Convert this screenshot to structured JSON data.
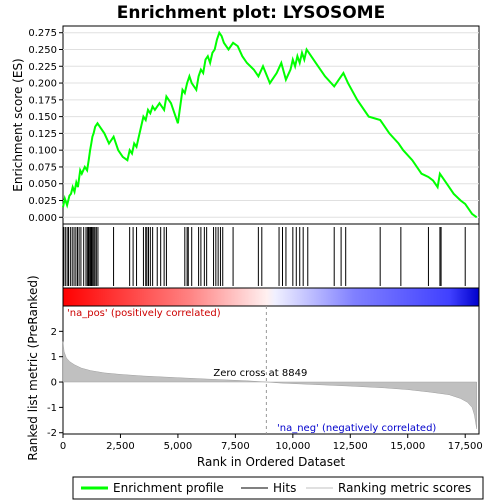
{
  "chart_data": {
    "type": "line",
    "title": "Enrichment plot: LYSOSOME",
    "top_panel": {
      "ylabel": "Enrichment score (ES)",
      "ylim": [
        -0.01,
        0.285
      ],
      "yticks": [
        0.0,
        0.025,
        0.05,
        0.075,
        0.1,
        0.125,
        0.15,
        0.175,
        0.2,
        0.225,
        0.25,
        0.275
      ],
      "ytick_labels": [
        "0.000",
        "0.025",
        "0.050",
        "0.075",
        "0.100",
        "0.125",
        "0.150",
        "0.175",
        "0.200",
        "0.225",
        "0.250",
        "0.275"
      ],
      "series": [
        {
          "name": "Enrichment profile",
          "color": "#00ff00",
          "x": [
            0,
            80,
            180,
            280,
            350,
            420,
            500,
            580,
            650,
            750,
            820,
            950,
            1050,
            1120,
            1180,
            1230,
            1280,
            1330,
            1400,
            1500,
            1800,
            2000,
            2200,
            2400,
            2600,
            2800,
            2900,
            3000,
            3100,
            3200,
            3300,
            3400,
            3500,
            3600,
            3700,
            3800,
            3900,
            4000,
            4200,
            4400,
            4500,
            4700,
            5000,
            5200,
            5300,
            5400,
            5500,
            5600,
            5800,
            5900,
            6000,
            6100,
            6200,
            6300,
            6400,
            6500,
            6600,
            6700,
            6800,
            6900,
            7000,
            7200,
            7400,
            7600,
            7800,
            8000,
            8300,
            8500,
            8700,
            9000,
            9300,
            9500,
            9700,
            9900,
            10000,
            10100,
            10200,
            10300,
            10400,
            10500,
            10600,
            10700,
            11000,
            11400,
            11800,
            12000,
            12200,
            12400,
            12800,
            13300,
            13800,
            14200,
            14600,
            14800,
            15200,
            15600,
            15900,
            16100,
            16300,
            16400,
            16700,
            17000,
            17300,
            17500,
            17800,
            18000
          ],
          "y": [
            0.015,
            0.028,
            0.018,
            0.032,
            0.035,
            0.045,
            0.038,
            0.052,
            0.045,
            0.07,
            0.065,
            0.075,
            0.07,
            0.085,
            0.1,
            0.11,
            0.12,
            0.125,
            0.135,
            0.14,
            0.125,
            0.11,
            0.12,
            0.1,
            0.09,
            0.085,
            0.1,
            0.095,
            0.11,
            0.105,
            0.12,
            0.135,
            0.15,
            0.145,
            0.16,
            0.155,
            0.165,
            0.16,
            0.17,
            0.16,
            0.18,
            0.17,
            0.14,
            0.19,
            0.185,
            0.2,
            0.21,
            0.2,
            0.19,
            0.21,
            0.22,
            0.215,
            0.235,
            0.24,
            0.23,
            0.245,
            0.25,
            0.265,
            0.275,
            0.27,
            0.26,
            0.25,
            0.26,
            0.255,
            0.24,
            0.23,
            0.22,
            0.21,
            0.225,
            0.2,
            0.215,
            0.23,
            0.205,
            0.22,
            0.235,
            0.225,
            0.24,
            0.23,
            0.245,
            0.235,
            0.25,
            0.245,
            0.23,
            0.21,
            0.195,
            0.205,
            0.215,
            0.2,
            0.175,
            0.15,
            0.145,
            0.125,
            0.11,
            0.1,
            0.085,
            0.065,
            0.06,
            0.055,
            0.045,
            0.065,
            0.05,
            0.035,
            0.025,
            0.02,
            0.005,
            0.0
          ]
        }
      ]
    },
    "hits": {
      "name": "Hits",
      "x": [
        30,
        100,
        180,
        240,
        320,
        400,
        480,
        560,
        630,
        700,
        780,
        900,
        1000,
        1060,
        1110,
        1160,
        1200,
        1240,
        1290,
        1340,
        1390,
        1450,
        1520,
        2200,
        2900,
        3050,
        3200,
        3500,
        3600,
        3650,
        3720,
        3800,
        3900,
        4100,
        4250,
        4400,
        4500,
        5300,
        5400,
        5450,
        5600,
        5900,
        6000,
        6150,
        6250,
        6550,
        6650,
        6750,
        6850,
        6950,
        7400,
        8500,
        8650,
        9400,
        9550,
        9700,
        10000,
        10150,
        10300,
        10450,
        10650,
        11800,
        12100,
        12300,
        13800,
        14700,
        15900,
        16400,
        16450,
        17500
      ]
    },
    "bottom_panel": {
      "ylabel": "Ranked list metric (PreRanked)",
      "xlabel": "Rank in Ordered Dataset",
      "ylim": [
        -2.05,
        3.0
      ],
      "yticks": [
        -2,
        -1,
        0,
        1,
        2
      ],
      "ytick_labels": [
        "-2",
        "-1",
        "0",
        "1",
        "2"
      ],
      "xlim": [
        0,
        18100
      ],
      "xticks": [
        0,
        2500,
        5000,
        7500,
        10000,
        12500,
        15000,
        17500
      ],
      "xtick_labels": [
        "0",
        "2,500",
        "5,000",
        "7,500",
        "10,000",
        "12,500",
        "15,000",
        "17,500"
      ],
      "metric_profile": {
        "name": "Ranking metric scores",
        "color": "#c0c0c0",
        "x": [
          0,
          50,
          150,
          300,
          500,
          800,
          1200,
          1800,
          2500,
          3500,
          5000,
          6500,
          8000,
          8849,
          9500,
          11000,
          12500,
          14000,
          15000,
          16000,
          16800,
          17300,
          17600,
          17800,
          17900,
          18000
        ],
        "y": [
          1.6,
          1.2,
          0.95,
          0.8,
          0.68,
          0.55,
          0.45,
          0.36,
          0.3,
          0.24,
          0.17,
          0.11,
          0.05,
          0.0,
          -0.04,
          -0.1,
          -0.16,
          -0.23,
          -0.3,
          -0.4,
          -0.5,
          -0.65,
          -0.8,
          -1.0,
          -1.3,
          -1.85
        ]
      },
      "zero_cross": 8849,
      "zero_cross_label": "Zero cross at 8849",
      "pos_label": "'na_pos' (positively correlated)",
      "neg_label": "'na_neg' (negatively correlated)",
      "pos_color": "#cc0000",
      "neg_color": "#0000cc"
    },
    "legend": {
      "placement": "bottom",
      "entries": [
        {
          "label": "Enrichment profile",
          "color": "#00ff00"
        },
        {
          "label": "Hits",
          "color": "#000000"
        },
        {
          "label": "Ranking metric scores",
          "color": "#c0c0c0"
        }
      ]
    }
  }
}
